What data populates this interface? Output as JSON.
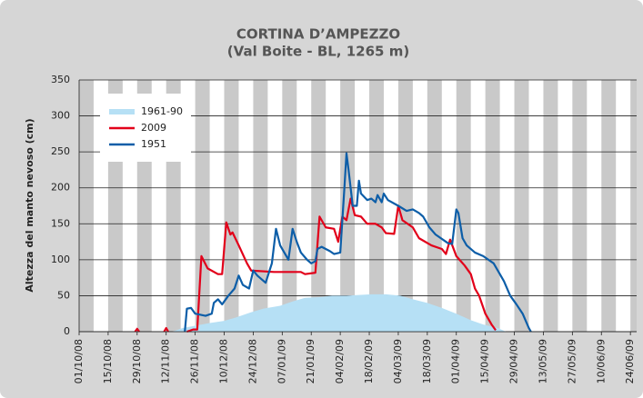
{
  "chart_data": {
    "type": "line",
    "title": "CORTINA D’AMPEZZO",
    "subtitle": "(Val Boite - BL, 1265 m)",
    "y_label": "Altezza del manto nevoso (cm)",
    "ylim": [
      0,
      350
    ],
    "yticks": [
      0,
      50,
      100,
      150,
      200,
      250,
      300,
      350
    ],
    "xlim": [
      "01/10/08",
      "27/06/09"
    ],
    "xticks": [
      "01/10/08",
      "15/10/08",
      "29/10/08",
      "12/11/08",
      "26/11/08",
      "10/12/08",
      "24/12/08",
      "07/01/09",
      "21/01/09",
      "04/02/09",
      "18/02/09",
      "04/03/09",
      "18/03/09",
      "01/04/09",
      "15/04/09",
      "29/04/09",
      "13/05/09",
      "27/05/09",
      "10/06/09",
      "24/06/09"
    ],
    "grid": true,
    "legend": "upper left",
    "series": [
      {
        "name": "1961-90",
        "type": "area",
        "color": "#b6e0f5",
        "x": [
          "15/11/08",
          "20/11/08",
          "03/12/08",
          "10/12/08",
          "16/12/08",
          "23/12/08",
          "29/12/08",
          "06/01/09",
          "12/01/09",
          "18/01/09",
          "25/01/09",
          "31/01/09",
          "07/02/09",
          "13/02/09",
          "19/02/09",
          "26/02/09",
          "05/03/09",
          "11/03/09",
          "18/03/09",
          "25/03/09",
          "01/04/09",
          "08/04/09",
          "14/04/09",
          "21/04/09",
          "25/04/09"
        ],
        "values": [
          0,
          5,
          12,
          15,
          20,
          27,
          32,
          36,
          42,
          47,
          48,
          50,
          50,
          51,
          52,
          52,
          50,
          45,
          40,
          33,
          25,
          16,
          10,
          5,
          0
        ]
      },
      {
        "name": "2009",
        "type": "line",
        "color": "#e2001a",
        "x": [
          "28/10/08",
          "29/10/08",
          "30/10/08",
          null,
          "11/11/08",
          "12/11/08",
          "13/11/08",
          null,
          "22/11/08",
          "25/11/08",
          "27/11/08",
          "29/11/08",
          "02/12/08",
          "07/12/08",
          "09/12/08",
          "11/12/08",
          "13/12/08",
          "14/12/08",
          "17/12/08",
          "21/12/08",
          "23/12/08",
          "03/01/09",
          "16/01/09",
          "18/01/09",
          "23/01/09",
          "25/01/09",
          "28/01/09",
          "01/02/09",
          "03/02/09",
          "05/02/09",
          "07/02/09",
          "09/02/09",
          "11/02/09",
          "14/02/09",
          "17/02/09",
          "21/02/09",
          "24/02/09",
          "26/02/09",
          "02/03/09",
          "04/03/09",
          "06/03/09",
          "11/03/09",
          "14/03/09",
          "20/03/09",
          "25/03/09",
          "27/03/09",
          "29/03/09",
          "01/04/09",
          "05/04/09",
          "08/04/09",
          "10/04/09",
          "12/04/09",
          "15/04/09",
          "18/04/09",
          "20/04/09"
        ],
        "values": [
          0,
          4,
          0,
          null,
          0,
          5,
          0,
          null,
          0,
          3,
          3,
          105,
          88,
          80,
          80,
          152,
          135,
          138,
          120,
          95,
          85,
          83,
          83,
          80,
          82,
          160,
          145,
          143,
          125,
          160,
          155,
          185,
          162,
          160,
          150,
          150,
          145,
          137,
          136,
          175,
          155,
          145,
          130,
          120,
          115,
          108,
          128,
          105,
          92,
          80,
          60,
          50,
          25,
          10,
          2
        ]
      },
      {
        "name": "1951",
        "type": "line",
        "color": "#0d5ea8",
        "x": [
          "21/11/08",
          "22/11/08",
          "24/11/08",
          "26/11/08",
          "01/12/08",
          "04/12/08",
          "05/12/08",
          "07/12/08",
          "09/12/08",
          "12/12/08",
          "15/12/08",
          "17/12/08",
          "19/12/08",
          "22/12/08",
          "24/12/08",
          "26/12/08",
          "30/12/08",
          "02/01/09",
          "04/01/09",
          "06/01/09",
          "08/01/09",
          "10/01/09",
          "12/01/09",
          "14/01/09",
          "16/01/09",
          "19/01/09",
          "21/01/09",
          "23/01/09",
          "24/01/09",
          "26/01/09",
          "30/01/09",
          "01/02/09",
          "04/02/09",
          "06/02/09",
          "07/02/09",
          "08/02/09",
          "10/02/09",
          "12/02/09",
          "13/02/09",
          "14/02/09",
          "17/02/09",
          "19/02/09",
          "21/02/09",
          "22/02/09",
          "24/02/09",
          "25/02/09",
          "27/02/09",
          "04/03/09",
          "08/03/09",
          "11/03/09",
          "14/03/09",
          "16/03/09",
          "19/03/09",
          "22/03/09",
          "27/03/09",
          "28/03/09",
          "30/03/09",
          "01/04/09",
          "02/04/09",
          "04/04/09",
          "06/04/09",
          "10/04/09",
          "14/04/09",
          "19/04/09",
          "21/04/09",
          "24/04/09",
          "27/04/09",
          "30/04/09",
          "03/05/09",
          "06/05/09",
          "07/05/09"
        ],
        "values": [
          0,
          32,
          33,
          25,
          22,
          25,
          40,
          45,
          38,
          50,
          60,
          78,
          65,
          60,
          85,
          78,
          68,
          95,
          143,
          120,
          110,
          100,
          143,
          125,
          110,
          100,
          95,
          98,
          115,
          118,
          112,
          108,
          110,
          200,
          248,
          225,
          175,
          175,
          210,
          192,
          183,
          185,
          180,
          190,
          180,
          192,
          183,
          175,
          168,
          170,
          165,
          160,
          145,
          135,
          125,
          123,
          122,
          170,
          165,
          130,
          120,
          110,
          105,
          95,
          85,
          70,
          50,
          38,
          25,
          5,
          0
        ]
      }
    ]
  }
}
